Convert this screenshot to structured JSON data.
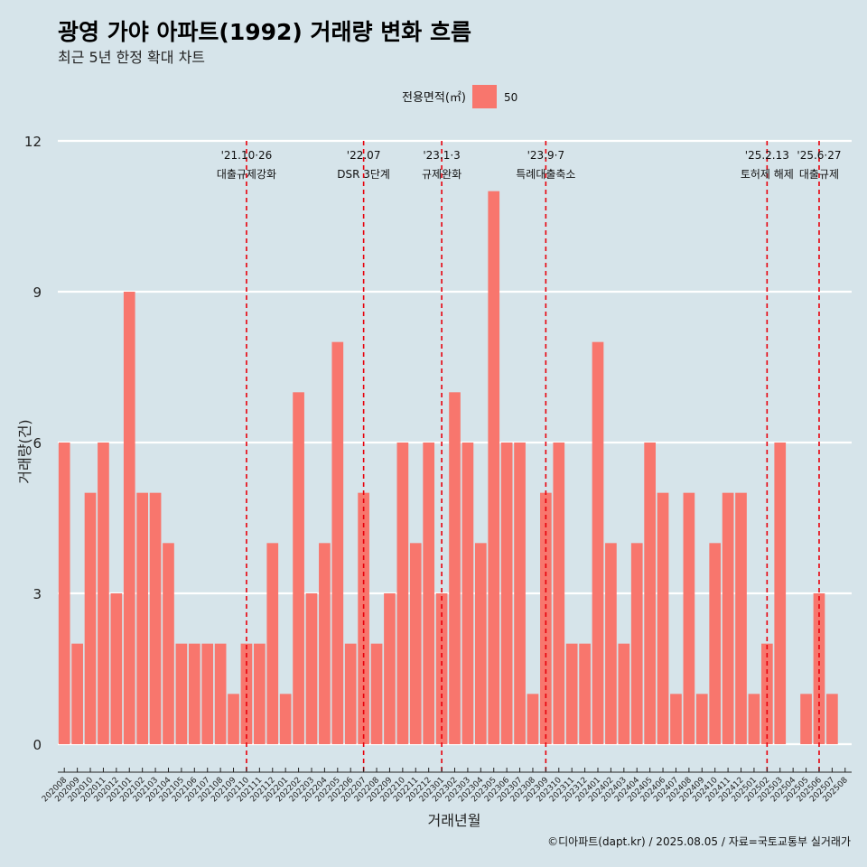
{
  "chart_data": {
    "type": "bar",
    "title": "광영 가야 아파트(1992) 거래량 변화 흐름",
    "subtitle": "최근 5년 한정 확대 차트",
    "xlabel": "거래년월",
    "ylabel": "거래량(건)",
    "ylim": [
      0,
      12
    ],
    "yticks": [
      0,
      3,
      6,
      9,
      12
    ],
    "grid": true,
    "legend": {
      "title": "전용면적(㎡)",
      "position": "top",
      "entries": [
        {
          "label": "50",
          "color": "#f8766d"
        }
      ]
    },
    "categories": [
      "202008",
      "202009",
      "202010",
      "202011",
      "202012",
      "202101",
      "202102",
      "202103",
      "202104",
      "202105",
      "202106",
      "202107",
      "202108",
      "202109",
      "202110",
      "202111",
      "202112",
      "202201",
      "202202",
      "202203",
      "202204",
      "202205",
      "202206",
      "202207",
      "202208",
      "202209",
      "202210",
      "202211",
      "202212",
      "202301",
      "202302",
      "202303",
      "202304",
      "202305",
      "202306",
      "202307",
      "202308",
      "202309",
      "202310",
      "202311",
      "202312",
      "202401",
      "202402",
      "202403",
      "202404",
      "202405",
      "202406",
      "202407",
      "202408",
      "202409",
      "202410",
      "202411",
      "202412",
      "202501",
      "202502",
      "202503",
      "202504",
      "202505",
      "202506",
      "202507",
      "202508"
    ],
    "series": [
      {
        "name": "50",
        "color": "#f8766d",
        "values": [
          6,
          2,
          5,
          6,
          3,
          9,
          5,
          5,
          4,
          2,
          2,
          2,
          2,
          1,
          2,
          2,
          4,
          1,
          7,
          3,
          4,
          8,
          2,
          5,
          2,
          3,
          6,
          4,
          6,
          3,
          7,
          6,
          4,
          11,
          6,
          6,
          1,
          5,
          6,
          2,
          2,
          8,
          4,
          2,
          4,
          6,
          5,
          1,
          5,
          1,
          4,
          5,
          5,
          1,
          2,
          6,
          0,
          1,
          3,
          1,
          null
        ]
      }
    ],
    "annotations": [
      {
        "category": "202110",
        "date": "'21.10·26",
        "label": "대출규제강화"
      },
      {
        "category": "202207",
        "date": "'22.07",
        "label": "DSR 3단계"
      },
      {
        "category": "202301",
        "date": "'23.1·3",
        "label": "규제완화"
      },
      {
        "category": "202309",
        "date": "'23.9·7",
        "label": "특례대출축소"
      },
      {
        "category": "202502",
        "date": "'25.2.13",
        "label": "토허제 해제"
      },
      {
        "category": "202506",
        "date": "'25.6·27",
        "label": "대출규제"
      }
    ],
    "annotation_color": "#e8000b",
    "caption": "©디아파트(dapt.kr) / 2025.08.05 / 자료=국토교통부 실거래가"
  }
}
